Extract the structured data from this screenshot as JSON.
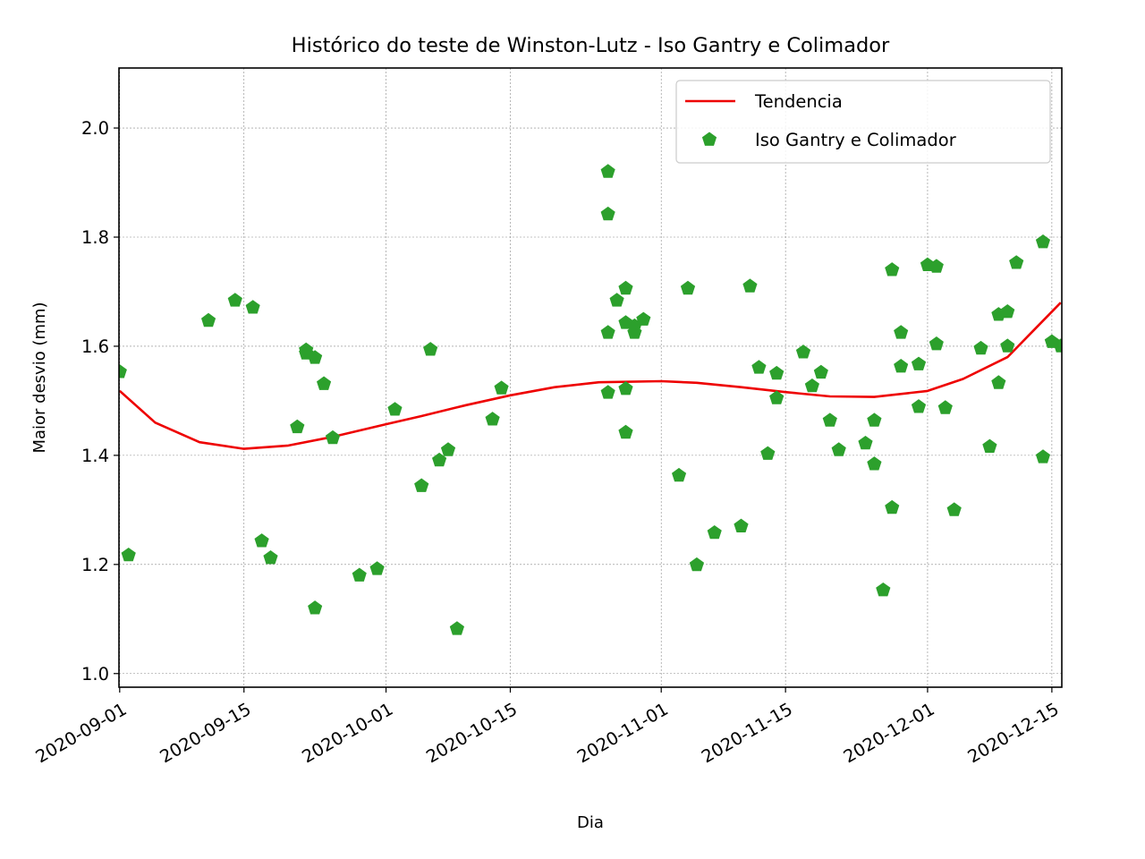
{
  "chart_data": {
    "type": "scatter",
    "title": "Histórico do teste de Winston-Lutz - Iso Gantry e Colimador",
    "xlabel": "Dia",
    "ylabel": "Maior desvio (mm)",
    "x_type": "date",
    "xlim": [
      "2020-09-01",
      "2020-12-16"
    ],
    "ylim": [
      0.975,
      2.11
    ],
    "x_ticks": [
      "2020-09-01",
      "2020-09-15",
      "2020-10-01",
      "2020-10-15",
      "2020-11-01",
      "2020-11-15",
      "2020-12-01",
      "2020-12-15"
    ],
    "y_ticks": [
      "1.0",
      "1.2",
      "1.4",
      "1.6",
      "1.8",
      "2.0"
    ],
    "grid": true,
    "legend_position": "upper right",
    "series": [
      {
        "name": "Tendencia",
        "kind": "line",
        "color": "#ee0000",
        "points": [
          [
            "2020-09-01",
            1.518
          ],
          [
            "2020-09-05",
            1.46
          ],
          [
            "2020-09-10",
            1.424
          ],
          [
            "2020-09-15",
            1.412
          ],
          [
            "2020-09-20",
            1.418
          ],
          [
            "2020-09-25",
            1.434
          ],
          [
            "2020-10-01",
            1.457
          ],
          [
            "2020-10-05",
            1.472
          ],
          [
            "2020-10-10",
            1.492
          ],
          [
            "2020-10-15",
            1.51
          ],
          [
            "2020-10-20",
            1.525
          ],
          [
            "2020-10-25",
            1.534
          ],
          [
            "2020-11-01",
            1.536
          ],
          [
            "2020-11-05",
            1.533
          ],
          [
            "2020-11-10",
            1.525
          ],
          [
            "2020-11-15",
            1.516
          ],
          [
            "2020-11-20",
            1.508
          ],
          [
            "2020-11-25",
            1.507
          ],
          [
            "2020-12-01",
            1.518
          ],
          [
            "2020-12-05",
            1.54
          ],
          [
            "2020-12-10",
            1.58
          ],
          [
            "2020-12-16",
            1.68
          ]
        ]
      },
      {
        "name": "Iso Gantry e Colimador",
        "kind": "scatter",
        "marker": "pentagon",
        "color": "#2ca02c",
        "points": [
          [
            "2020-09-01",
            1.553
          ],
          [
            "2020-09-02",
            1.217
          ],
          [
            "2020-09-11",
            1.647
          ],
          [
            "2020-09-14",
            1.684
          ],
          [
            "2020-09-16",
            1.671
          ],
          [
            "2020-09-17",
            1.243
          ],
          [
            "2020-09-18",
            1.212
          ],
          [
            "2020-09-21",
            1.452
          ],
          [
            "2020-09-22",
            1.593
          ],
          [
            "2020-09-22",
            1.587
          ],
          [
            "2020-09-23",
            1.579
          ],
          [
            "2020-09-23",
            1.12
          ],
          [
            "2020-09-24",
            1.531
          ],
          [
            "2020-09-25",
            1.432
          ],
          [
            "2020-09-28",
            1.18
          ],
          [
            "2020-09-30",
            1.192
          ],
          [
            "2020-10-02",
            1.484
          ],
          [
            "2020-10-05",
            1.344
          ],
          [
            "2020-10-06",
            1.594
          ],
          [
            "2020-10-07",
            1.391
          ],
          [
            "2020-10-08",
            1.41
          ],
          [
            "2020-10-09",
            1.082
          ],
          [
            "2020-10-13",
            1.466
          ],
          [
            "2020-10-14",
            1.523
          ],
          [
            "2020-10-26",
            1.92
          ],
          [
            "2020-10-26",
            1.842
          ],
          [
            "2020-10-26",
            1.625
          ],
          [
            "2020-10-26",
            1.515
          ],
          [
            "2020-10-27",
            1.684
          ],
          [
            "2020-10-28",
            1.706
          ],
          [
            "2020-10-28",
            1.643
          ],
          [
            "2020-10-28",
            1.522
          ],
          [
            "2020-10-28",
            1.442
          ],
          [
            "2020-10-29",
            1.625
          ],
          [
            "2020-10-29",
            1.637
          ],
          [
            "2020-10-30",
            1.649
          ],
          [
            "2020-11-03",
            1.363
          ],
          [
            "2020-11-04",
            1.706
          ],
          [
            "2020-11-05",
            1.199
          ],
          [
            "2020-11-07",
            1.258
          ],
          [
            "2020-11-10",
            1.27
          ],
          [
            "2020-11-11",
            1.71
          ],
          [
            "2020-11-12",
            1.561
          ],
          [
            "2020-11-13",
            1.403
          ],
          [
            "2020-11-14",
            1.55
          ],
          [
            "2020-11-14",
            1.505
          ],
          [
            "2020-11-17",
            1.589
          ],
          [
            "2020-11-18",
            1.527
          ],
          [
            "2020-11-19",
            1.552
          ],
          [
            "2020-11-20",
            1.464
          ],
          [
            "2020-11-21",
            1.41
          ],
          [
            "2020-11-24",
            1.422
          ],
          [
            "2020-11-25",
            1.464
          ],
          [
            "2020-11-25",
            1.384
          ],
          [
            "2020-11-26",
            1.153
          ],
          [
            "2020-11-27",
            1.74
          ],
          [
            "2020-11-27",
            1.304
          ],
          [
            "2020-11-28",
            1.625
          ],
          [
            "2020-11-28",
            1.563
          ],
          [
            "2020-11-30",
            1.567
          ],
          [
            "2020-11-30",
            1.489
          ],
          [
            "2020-12-01",
            1.749
          ],
          [
            "2020-12-02",
            1.746
          ],
          [
            "2020-12-02",
            1.604
          ],
          [
            "2020-12-03",
            1.487
          ],
          [
            "2020-12-04",
            1.3
          ],
          [
            "2020-12-07",
            1.596
          ],
          [
            "2020-12-08",
            1.416
          ],
          [
            "2020-12-09",
            1.658
          ],
          [
            "2020-12-09",
            1.533
          ],
          [
            "2020-12-10",
            1.663
          ],
          [
            "2020-12-10",
            1.6
          ],
          [
            "2020-12-11",
            1.753
          ],
          [
            "2020-12-14",
            1.791
          ],
          [
            "2020-12-14",
            1.397
          ],
          [
            "2020-12-15",
            1.608
          ],
          [
            "2020-12-16",
            1.6
          ]
        ]
      }
    ]
  }
}
